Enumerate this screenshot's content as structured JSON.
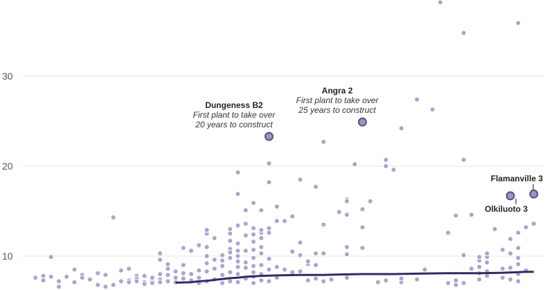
{
  "chart_data": {
    "type": "scatter",
    "title": "",
    "xlabel": "",
    "ylabel": "",
    "ylim": [
      0,
      37
    ],
    "y_ticks": [
      "10",
      "20",
      "30"
    ],
    "grid": true,
    "colors": {
      "dot": "#aaa5cc",
      "highlight": "#9995c1",
      "highlight_stroke": "#56527a",
      "trend": "#2f2a63",
      "grid": "#e6e6e6"
    },
    "points": [
      [
        1,
        7.6
      ],
      [
        2,
        7.8
      ],
      [
        2,
        7.3
      ],
      [
        3,
        7.7
      ],
      [
        3,
        9.9
      ],
      [
        4,
        6.6
      ],
      [
        4,
        7.2
      ],
      [
        5,
        7.7
      ],
      [
        6,
        8.5
      ],
      [
        6,
        7.1
      ],
      [
        7,
        7.9
      ],
      [
        7,
        7.6
      ],
      [
        8,
        7.4
      ],
      [
        9,
        6.8
      ],
      [
        9,
        8.1
      ],
      [
        10,
        6.6
      ],
      [
        10,
        7.9
      ],
      [
        11,
        6.8
      ],
      [
        11,
        14.3
      ],
      [
        12,
        7.2
      ],
      [
        12,
        8.4
      ],
      [
        13,
        7.3
      ],
      [
        13,
        8.6
      ],
      [
        13,
        7.1
      ],
      [
        14,
        7.8
      ],
      [
        14,
        7.5
      ],
      [
        14,
        7.2
      ],
      [
        15,
        7.1
      ],
      [
        15,
        7.8
      ],
      [
        15,
        6.9
      ],
      [
        16,
        7.3
      ],
      [
        16,
        7.6
      ],
      [
        16,
        7.0
      ],
      [
        17,
        8.0
      ],
      [
        17,
        7.4
      ],
      [
        17,
        9.6
      ],
      [
        17,
        7.1
      ],
      [
        17,
        10.3
      ],
      [
        18,
        8.6
      ],
      [
        18,
        7.2
      ],
      [
        18,
        7.9
      ],
      [
        18,
        9.1
      ],
      [
        19,
        7.1
      ],
      [
        19,
        8.3
      ],
      [
        19,
        7.6
      ],
      [
        20,
        7.5
      ],
      [
        20,
        8.1
      ],
      [
        20,
        9.0
      ],
      [
        20,
        10.9
      ],
      [
        21,
        7.3
      ],
      [
        21,
        8.0
      ],
      [
        21,
        10.6
      ],
      [
        22,
        7.6
      ],
      [
        22,
        7.0
      ],
      [
        22,
        8.4
      ],
      [
        22,
        11.2
      ],
      [
        23,
        7.2
      ],
      [
        23,
        8.3
      ],
      [
        23,
        9.2
      ],
      [
        23,
        10.0
      ],
      [
        23,
        11.0
      ],
      [
        23,
        12.5
      ],
      [
        23,
        12.9
      ],
      [
        24,
        7.4
      ],
      [
        24,
        8.6
      ],
      [
        24,
        12.0
      ],
      [
        24,
        9.6
      ],
      [
        25,
        7.0
      ],
      [
        25,
        7.9
      ],
      [
        25,
        8.9
      ],
      [
        25,
        9.5
      ],
      [
        25,
        10.1
      ],
      [
        26,
        7.2
      ],
      [
        26,
        8.2
      ],
      [
        26,
        9.8
      ],
      [
        26,
        10.8
      ],
      [
        26,
        11.7
      ],
      [
        26,
        12.5
      ],
      [
        26,
        13.0
      ],
      [
        26,
        10.4
      ],
      [
        27,
        7.1
      ],
      [
        27,
        8.0
      ],
      [
        27,
        8.8
      ],
      [
        27,
        9.4
      ],
      [
        27,
        10.0
      ],
      [
        27,
        10.6
      ],
      [
        27,
        11.4
      ],
      [
        27,
        13.4
      ],
      [
        27,
        16.9
      ],
      [
        27,
        19.3
      ],
      [
        28,
        7.5
      ],
      [
        28,
        8.7
      ],
      [
        28,
        9.3
      ],
      [
        28,
        10.6
      ],
      [
        28,
        12.3
      ],
      [
        28,
        13.6
      ],
      [
        28,
        15.1
      ],
      [
        29,
        7.0
      ],
      [
        29,
        7.7
      ],
      [
        29,
        8.2
      ],
      [
        29,
        8.9
      ],
      [
        29,
        9.8
      ],
      [
        29,
        10.7
      ],
      [
        29,
        11.6
      ],
      [
        29,
        12.4
      ],
      [
        29,
        13.1
      ],
      [
        29,
        15.9
      ],
      [
        30,
        7.3
      ],
      [
        30,
        8.0
      ],
      [
        30,
        9.0
      ],
      [
        30,
        10.3
      ],
      [
        30,
        11.0
      ],
      [
        30,
        12.0
      ],
      [
        30,
        12.6
      ],
      [
        30,
        12.9
      ],
      [
        30,
        15.1
      ],
      [
        31,
        7.2
      ],
      [
        31,
        8.5
      ],
      [
        31,
        9.7
      ],
      [
        31,
        12.6
      ],
      [
        31,
        13.1
      ],
      [
        31,
        18.2
      ],
      [
        31,
        20.3
      ],
      [
        32,
        7.6
      ],
      [
        32,
        8.8
      ],
      [
        32,
        13.9
      ],
      [
        32,
        15.5
      ],
      [
        33,
        8.5
      ],
      [
        33,
        13.9
      ],
      [
        34,
        8.2
      ],
      [
        34,
        14.4
      ],
      [
        34,
        10.5
      ],
      [
        35,
        8.3
      ],
      [
        35,
        10.1
      ],
      [
        35,
        11.5
      ],
      [
        35,
        18.5
      ],
      [
        36,
        7.3
      ],
      [
        36,
        9.1
      ],
      [
        36,
        9.4
      ],
      [
        37,
        7.5
      ],
      [
        37,
        9.0
      ],
      [
        37,
        10.3
      ],
      [
        37,
        17.7
      ],
      [
        38,
        7.2
      ],
      [
        38,
        10.3
      ],
      [
        38,
        13.5
      ],
      [
        38,
        22.7
      ],
      [
        39,
        7.4
      ],
      [
        40,
        14.9
      ],
      [
        41,
        7.6
      ],
      [
        41,
        10.2
      ],
      [
        41,
        11.0
      ],
      [
        41,
        14.6
      ],
      [
        41,
        16.3
      ],
      [
        41,
        16.1
      ],
      [
        42,
        20.2
      ],
      [
        43,
        10.9
      ],
      [
        43,
        13.2
      ],
      [
        43,
        15.2
      ],
      [
        44,
        16.1
      ],
      [
        45,
        7.1
      ],
      [
        46,
        7.3
      ],
      [
        46,
        20.0
      ],
      [
        46,
        20.7
      ],
      [
        47,
        19.6
      ],
      [
        48,
        7.1
      ],
      [
        48,
        7.5
      ],
      [
        48,
        24.2
      ],
      [
        50,
        7.4
      ],
      [
        50,
        27.4
      ],
      [
        51,
        8.5
      ],
      [
        52,
        26.3
      ],
      [
        53,
        38.2
      ],
      [
        54,
        7.0
      ],
      [
        54,
        12.6
      ],
      [
        55,
        6.8
      ],
      [
        55,
        7.3
      ],
      [
        55,
        14.5
      ],
      [
        56,
        7.0
      ],
      [
        56,
        10.1
      ],
      [
        56,
        20.7
      ],
      [
        56,
        34.8
      ],
      [
        57,
        8.6
      ],
      [
        57,
        14.6
      ],
      [
        58,
        7.4
      ],
      [
        58,
        8.1
      ],
      [
        58,
        8.8
      ],
      [
        58,
        9.5
      ],
      [
        58,
        9.9
      ],
      [
        59,
        7.8
      ],
      [
        59,
        8.3
      ],
      [
        59,
        9.3
      ],
      [
        59,
        9.9
      ],
      [
        59,
        10.3
      ],
      [
        60,
        13.0
      ],
      [
        61,
        7.6
      ],
      [
        61,
        8.6
      ],
      [
        61,
        10.7
      ],
      [
        62,
        7.4
      ],
      [
        62,
        8.7
      ],
      [
        62,
        10.3
      ],
      [
        62,
        11.9
      ],
      [
        63,
        7.2
      ],
      [
        63,
        8.0
      ],
      [
        63,
        9.1
      ],
      [
        63,
        9.8
      ],
      [
        63,
        10.9
      ],
      [
        63,
        12.6
      ],
      [
        63,
        35.9
      ],
      [
        64,
        8.4
      ],
      [
        64,
        13.2
      ],
      [
        65,
        13.6
      ]
    ],
    "x_domain": [
      0,
      66
    ],
    "trend": [
      [
        19,
        7.05
      ],
      [
        21,
        7.1
      ],
      [
        22,
        7.2
      ],
      [
        23,
        7.25
      ],
      [
        24,
        7.35
      ],
      [
        25,
        7.45
      ],
      [
        26,
        7.55
      ],
      [
        27,
        7.6
      ],
      [
        28,
        7.7
      ],
      [
        29,
        7.75
      ],
      [
        30,
        7.8
      ],
      [
        32,
        7.85
      ],
      [
        35,
        7.9
      ],
      [
        38,
        7.9
      ],
      [
        40,
        7.95
      ],
      [
        43,
        8.0
      ],
      [
        47,
        8.0
      ],
      [
        50,
        8.05
      ],
      [
        54,
        8.1
      ],
      [
        58,
        8.1
      ],
      [
        61,
        8.15
      ],
      [
        64,
        8.25
      ],
      [
        65,
        8.25
      ]
    ],
    "highlights": [
      {
        "id": "dungeness",
        "x": 31,
        "y": 23.3,
        "title": "Dungeness B2",
        "line1": "First plant to take over",
        "line2": "20 years to construct"
      },
      {
        "id": "angra",
        "x": 43,
        "y": 24.9,
        "title": "Angra 2",
        "line1": "First plant to take over",
        "line2": "25 years to construct"
      },
      {
        "id": "flamanville",
        "x": 65,
        "y": 16.9,
        "label": "Flamanville 3"
      },
      {
        "id": "olkiluoto",
        "x": 62,
        "y": 16.7,
        "label": "Olkiluoto 3"
      }
    ]
  }
}
